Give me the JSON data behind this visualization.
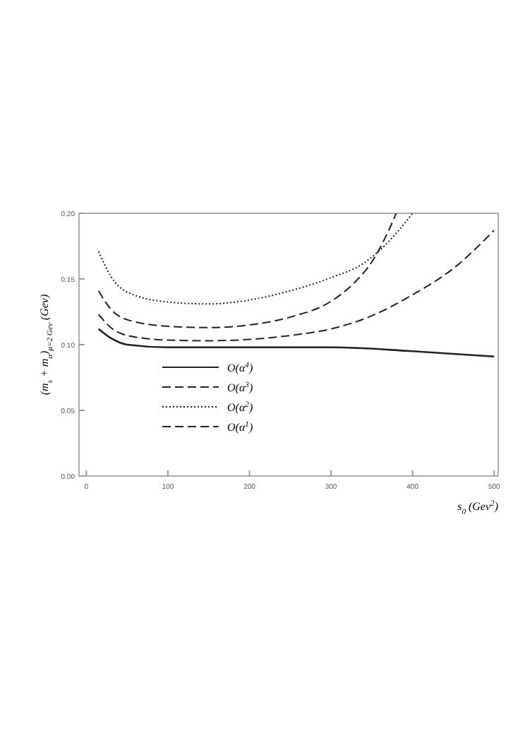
{
  "chart_data": {
    "type": "line",
    "xlabel": "s$_{0}$ (Gev$^{2}$)",
    "ylabel": "(m$_{s}$ + m$_{u}$)$_{μ=2 Gev}$ (Gev)",
    "xlim": [
      -9,
      505
    ],
    "ylim": [
      0,
      0.2
    ],
    "xticks": [
      0,
      100,
      200,
      300,
      400,
      500
    ],
    "yticks": [
      {
        "value": 0,
        "label": "0.00"
      },
      {
        "value": 0.05,
        "label": "0.05"
      },
      {
        "value": 0.1,
        "label": "0.10"
      },
      {
        "value": 0.15,
        "label": "0.15"
      },
      {
        "value": 0.2,
        "label": "0.20"
      }
    ],
    "legend": "bottom left",
    "grid": false,
    "series": [
      {
        "name": "O(α$^{4}$)",
        "color": "#222222",
        "line_style": "solid",
        "x": [
          15,
          30,
          50,
          100,
          200,
          300,
          400,
          500
        ],
        "values": [
          0.112,
          0.105,
          0.1,
          0.098,
          0.098,
          0.098,
          0.095,
          0.091
        ]
      },
      {
        "name": "O(α$^{3}$)",
        "color": "#222222",
        "line_style": "dashed",
        "x": [
          15,
          30,
          50,
          100,
          150,
          200,
          250,
          300,
          330,
          350,
          370,
          380
        ],
        "values": [
          0.141,
          0.127,
          0.119,
          0.114,
          0.113,
          0.115,
          0.121,
          0.133,
          0.148,
          0.163,
          0.186,
          0.2
        ]
      },
      {
        "name": "O(α$^{2}$)",
        "color": "#222222",
        "line_style": "dotted",
        "x": [
          15,
          30,
          50,
          100,
          150,
          200,
          250,
          300,
          340,
          370,
          400
        ],
        "values": [
          0.171,
          0.152,
          0.14,
          0.1325,
          0.131,
          0.134,
          0.141,
          0.151,
          0.162,
          0.178,
          0.2
        ]
      },
      {
        "name": "O(α$^{1}$)",
        "color": "#222222",
        "line_style": "dashed",
        "x": [
          15,
          30,
          50,
          100,
          150,
          200,
          250,
          300,
          350,
          400,
          450,
          500
        ],
        "values": [
          0.123,
          0.113,
          0.107,
          0.1035,
          0.103,
          0.104,
          0.107,
          0.112,
          0.122,
          0.138,
          0.158,
          0.187
        ]
      }
    ]
  }
}
